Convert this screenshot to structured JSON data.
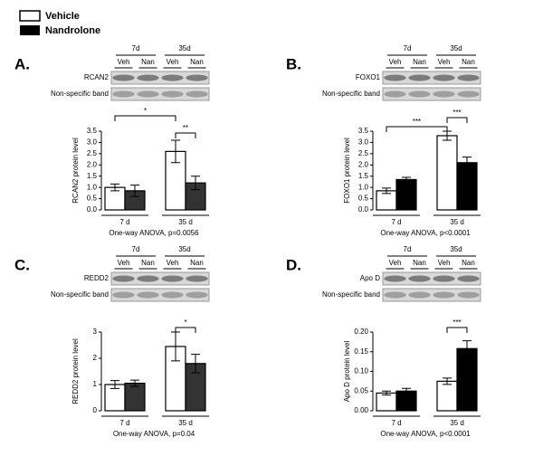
{
  "chart_data": [
    {
      "type": "bar",
      "panel": "A.",
      "blot": {
        "groups": [
          "7d",
          "35d"
        ],
        "lanes": [
          "Veh",
          "Nan",
          "Veh",
          "Nan"
        ],
        "protein": "RCAN2",
        "control": "Non-specific band"
      },
      "ylabel": "RCAN2 protein level",
      "categories": [
        "7 d",
        "35 d"
      ],
      "series": [
        {
          "name": "Vehicle",
          "color": "#ffffff",
          "values": [
            1.0,
            2.6
          ],
          "errors": [
            0.15,
            0.5
          ]
        },
        {
          "name": "Nandrolone",
          "color": "#333333",
          "values": [
            0.85,
            1.2
          ],
          "errors": [
            0.25,
            0.3
          ]
        }
      ],
      "ylim": [
        0,
        3.5
      ],
      "yticks": [
        {
          "value": 0,
          "label": "0.0"
        },
        0.5,
        {
          "value": 1,
          "label": "1.0"
        },
        1.5,
        {
          "value": 2,
          "label": "2.0"
        },
        2.5,
        {
          "value": 3,
          "label": "3.0"
        },
        3.5
      ],
      "annotations": [
        "*",
        "**"
      ],
      "note": "One-way ANOVA, p=0.0056"
    },
    {
      "type": "bar",
      "panel": "B.",
      "blot": {
        "groups": [
          "7d",
          "35d"
        ],
        "lanes": [
          "Veh",
          "Nan",
          "Veh",
          "Nan"
        ],
        "protein": "FOXO1",
        "control": "Non-specific band"
      },
      "ylabel": "FOXO1 protein level",
      "categories": [
        "7 d",
        "35 d"
      ],
      "series": [
        {
          "name": "Vehicle",
          "color": "#ffffff",
          "values": [
            0.85,
            3.3
          ],
          "errors": [
            0.12,
            0.2
          ]
        },
        {
          "name": "Nandrolone",
          "color": "#000000",
          "values": [
            1.35,
            2.1
          ],
          "errors": [
            0.1,
            0.25
          ]
        }
      ],
      "ylim": [
        0,
        3.5
      ],
      "yticks": [
        {
          "value": 0,
          "label": "0.0"
        },
        0.5,
        {
          "value": 1,
          "label": "1.0"
        },
        1.5,
        {
          "value": 2,
          "label": "2.0"
        },
        2.5,
        {
          "value": 3,
          "label": "3.0"
        },
        3.5
      ],
      "annotations": [
        "***",
        "***"
      ],
      "note": "One-way ANOVA, p<0.0001"
    },
    {
      "type": "bar",
      "panel": "C.",
      "blot": {
        "groups": [
          "7d",
          "35d"
        ],
        "lanes": [
          "Veh",
          "Nan",
          "Veh",
          "Nan"
        ],
        "protein": "REDD2",
        "control": "Non-specific band"
      },
      "ylabel": "REDD2 protein level",
      "categories": [
        "7 d",
        "35 d"
      ],
      "series": [
        {
          "name": "Vehicle",
          "color": "#ffffff",
          "values": [
            1.0,
            2.45
          ],
          "errors": [
            0.15,
            0.55
          ]
        },
        {
          "name": "Nandrolone",
          "color": "#333333",
          "values": [
            1.05,
            1.8
          ],
          "errors": [
            0.12,
            0.35
          ]
        }
      ],
      "ylim": [
        0,
        3
      ],
      "yticks": [
        0,
        1,
        2,
        3
      ],
      "annotations": [
        "*"
      ],
      "note": "One-way ANOVA, p=0.04"
    },
    {
      "type": "bar",
      "panel": "D.",
      "blot": {
        "groups": [
          "7d",
          "35d"
        ],
        "lanes": [
          "Veh",
          "Nan",
          "Veh",
          "Nan"
        ],
        "protein": "Apo D",
        "control": "Non-specific band"
      },
      "ylabel": "Apo D protein level",
      "categories": [
        "7 d",
        "35 d"
      ],
      "series": [
        {
          "name": "Vehicle",
          "color": "#ffffff",
          "values": [
            0.045,
            0.075
          ],
          "errors": [
            0.005,
            0.008
          ]
        },
        {
          "name": "Nandrolone",
          "color": "#000000",
          "values": [
            0.05,
            0.158
          ],
          "errors": [
            0.007,
            0.02
          ]
        }
      ],
      "ylim": [
        0,
        0.2
      ],
      "yticks": [
        {
          "value": 0,
          "label": "0.00"
        },
        {
          "value": 0.05,
          "label": "0.05"
        },
        {
          "value": 0.1,
          "label": "0.10"
        },
        {
          "value": 0.15,
          "label": "0.15"
        },
        {
          "value": 0.2,
          "label": "0.20"
        }
      ],
      "annotations": [
        "***"
      ],
      "note": "One-way ANOVA, p<0.0001"
    }
  ]
}
